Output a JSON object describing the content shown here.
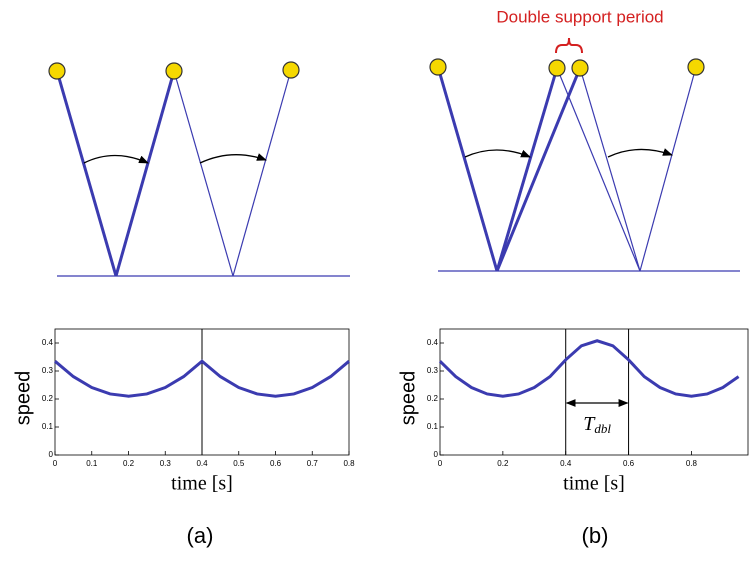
{
  "panel_labels": [
    "(a)",
    "(b)"
  ],
  "annotation": "Double support period",
  "chart_data": [
    {
      "type": "line",
      "ylabel": "speed",
      "xlabel": "time [s]",
      "xlim": [
        0,
        0.8
      ],
      "ylim": [
        0,
        0.45
      ],
      "xticks": [
        0,
        0.1,
        0.2,
        0.3,
        0.4,
        0.5,
        0.6,
        0.7,
        0.8
      ],
      "yticks": [
        0,
        0.1,
        0.2,
        0.3,
        0.4
      ],
      "vlines": [
        0.4
      ],
      "series": [
        {
          "color": "#3b3bb0",
          "x": [
            0,
            0.05,
            0.1,
            0.15,
            0.2,
            0.25,
            0.3,
            0.35,
            0.4,
            0.45,
            0.5,
            0.55,
            0.6,
            0.65,
            0.7,
            0.75,
            0.8
          ],
          "values": [
            0.335,
            0.28,
            0.241,
            0.218,
            0.21,
            0.218,
            0.241,
            0.28,
            0.335,
            0.28,
            0.241,
            0.218,
            0.21,
            0.218,
            0.241,
            0.28,
            0.335
          ]
        }
      ]
    },
    {
      "type": "line",
      "ylabel": "speed",
      "xlabel": "time [s]",
      "xlim": [
        0,
        0.98
      ],
      "ylim": [
        0,
        0.45
      ],
      "xticks": [
        0,
        0.2,
        0.4,
        0.6,
        0.8
      ],
      "yticks": [
        0,
        0.1,
        0.2,
        0.3,
        0.4
      ],
      "vlines": [
        0.4,
        0.6
      ],
      "span_label": {
        "symbol": "T",
        "subscript": "dbl"
      },
      "series": [
        {
          "color": "#3b3bb0",
          "x": [
            0,
            0.05,
            0.1,
            0.15,
            0.2,
            0.25,
            0.3,
            0.35,
            0.4,
            0.45,
            0.5,
            0.55,
            0.6,
            0.65,
            0.7,
            0.75,
            0.8,
            0.85,
            0.9,
            0.95
          ],
          "values": [
            0.335,
            0.28,
            0.241,
            0.218,
            0.21,
            0.218,
            0.241,
            0.28,
            0.34,
            0.39,
            0.408,
            0.39,
            0.34,
            0.28,
            0.241,
            0.218,
            0.21,
            0.218,
            0.241,
            0.28
          ]
        }
      ]
    }
  ]
}
